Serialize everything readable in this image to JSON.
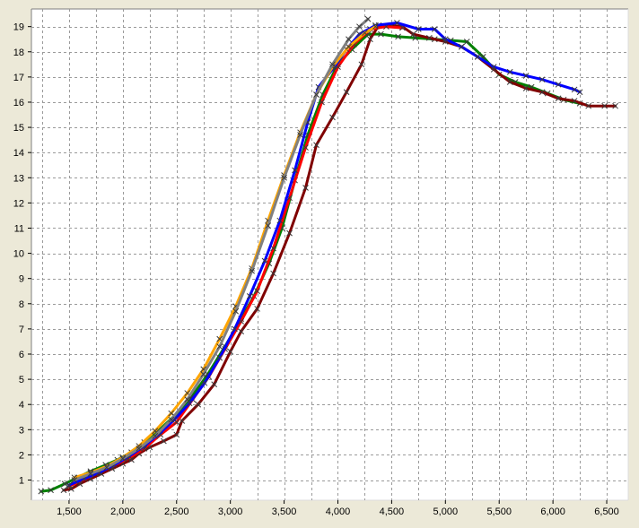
{
  "chart_data": {
    "type": "line",
    "title": "",
    "xlabel": "",
    "ylabel": "",
    "xlim": [
      1150,
      6700
    ],
    "ylim": [
      0.2,
      19.7
    ],
    "xticks": [
      1500,
      2000,
      2500,
      3000,
      3500,
      4000,
      4500,
      5000,
      5500,
      6000,
      6500
    ],
    "xtick_labels": [
      "1,500",
      "2,000",
      "2,500",
      "3,000",
      "3,500",
      "4,000",
      "4,500",
      "5,000",
      "5,500",
      "6,000",
      "6,500"
    ],
    "yticks": [
      1,
      2,
      3,
      4,
      5,
      6,
      7,
      8,
      9,
      10,
      11,
      12,
      13,
      14,
      15,
      16,
      17,
      18,
      19
    ],
    "ytick_labels": [
      "1",
      "2",
      "3",
      "4",
      "5",
      "6",
      "7",
      "8",
      "9",
      "10",
      "11",
      "12",
      "13",
      "14",
      "15",
      "16",
      "17",
      "18",
      "19"
    ],
    "xminor_step": 250,
    "grid": true,
    "legend": "none",
    "marker": "x",
    "series": [
      {
        "color": "#008000",
        "x": [
          1240,
          1330,
          1460,
          1580,
          1700,
          1840,
          1950,
          2080,
          2200,
          2330,
          2480,
          2640,
          2790,
          2950,
          3100,
          3220,
          3360,
          3480,
          3600,
          3720,
          3860,
          4000,
          4130,
          4280,
          4400,
          4560,
          4720,
          4900,
          5050,
          5200,
          5350,
          5500,
          5650,
          5800,
          5950,
          6100,
          6250
        ],
        "y": [
          0.55,
          0.6,
          0.85,
          1.1,
          1.35,
          1.6,
          1.8,
          2.1,
          2.5,
          2.95,
          3.55,
          4.3,
          5.2,
          6.3,
          7.4,
          8.3,
          9.6,
          11.0,
          12.9,
          14.7,
          16.3,
          17.5,
          18.1,
          18.7,
          18.7,
          18.6,
          18.55,
          18.5,
          18.45,
          18.4,
          17.8,
          17.1,
          16.8,
          16.6,
          16.35,
          16.1,
          15.95
        ]
      },
      {
        "color": "#800000",
        "x": [
          1450,
          1520,
          1600,
          1700,
          1800,
          1900,
          2000,
          2080,
          2150,
          2250,
          2380,
          2500,
          2550,
          2700,
          2850,
          3000,
          3100,
          3250,
          3400,
          3550,
          3700,
          3800,
          3950,
          4080,
          4220,
          4300,
          4380,
          4500,
          4600,
          4700,
          4850,
          5000,
          5150,
          5300,
          5450,
          5600,
          5750,
          5900,
          6050,
          6200,
          6330,
          6480,
          6580
        ],
        "y": [
          0.6,
          0.65,
          0.85,
          1.05,
          1.25,
          1.45,
          1.65,
          1.8,
          2.05,
          2.3,
          2.55,
          2.8,
          3.35,
          4.0,
          4.8,
          6.1,
          6.9,
          7.8,
          9.2,
          10.8,
          12.6,
          14.3,
          15.4,
          16.4,
          17.5,
          18.5,
          19.05,
          19.05,
          19.0,
          18.7,
          18.55,
          18.4,
          18.2,
          17.8,
          17.3,
          16.8,
          16.55,
          16.4,
          16.15,
          16.05,
          15.85,
          15.85,
          15.85
        ]
      },
      {
        "color": "#ff0000",
        "x": [
          1500,
          1600,
          1750,
          1900,
          2050,
          2200,
          2350,
          2500,
          2650,
          2800,
          2950,
          3100,
          3250,
          3400,
          3550,
          3700,
          3850,
          4000,
          4150,
          4300,
          4450,
          4600
        ],
        "y": [
          0.75,
          0.95,
          1.25,
          1.55,
          1.85,
          2.25,
          2.8,
          3.3,
          4.2,
          5.1,
          6.2,
          7.3,
          8.5,
          10.2,
          12.2,
          14.2,
          16.0,
          17.4,
          18.3,
          18.9,
          19.0,
          18.95
        ]
      },
      {
        "color": "#0000ff",
        "x": [
          1500,
          1640,
          1780,
          1920,
          2060,
          2200,
          2340,
          2480,
          2620,
          2760,
          2900,
          3040,
          3180,
          3320,
          3460,
          3600,
          3720,
          3820,
          3950,
          4080,
          4200,
          4350,
          4550,
          4750,
          4900,
          5000,
          5150,
          5300,
          5450,
          5600,
          5750,
          5900,
          6050,
          6200,
          6250
        ],
        "y": [
          0.8,
          1.05,
          1.3,
          1.6,
          1.95,
          2.35,
          2.85,
          3.4,
          4.05,
          4.85,
          5.85,
          7.0,
          8.3,
          9.7,
          11.3,
          13.3,
          15.2,
          16.6,
          17.3,
          18.1,
          18.7,
          19.05,
          19.15,
          18.9,
          18.9,
          18.5,
          18.2,
          17.8,
          17.4,
          17.2,
          17.05,
          16.9,
          16.7,
          16.5,
          16.4
        ]
      },
      {
        "color": "#ffa500",
        "x": [
          1550,
          1700,
          1850,
          2000,
          2150,
          2300,
          2450,
          2600,
          2750,
          2900,
          3050,
          3200,
          3350,
          3500,
          3650,
          3800,
          3950,
          4100,
          4250,
          4350
        ],
        "y": [
          1.1,
          1.3,
          1.55,
          1.9,
          2.35,
          2.95,
          3.65,
          4.45,
          5.4,
          6.6,
          7.9,
          9.4,
          11.3,
          13.1,
          14.8,
          16.3,
          17.4,
          18.2,
          18.75,
          19.0
        ]
      },
      {
        "color": "#808080",
        "x": [
          1550,
          1700,
          1850,
          2000,
          2150,
          2300,
          2450,
          2600,
          2750,
          2900,
          3050,
          3200,
          3350,
          3500,
          3650,
          3800,
          3950,
          4100,
          4200,
          4280
        ],
        "y": [
          1.0,
          1.25,
          1.5,
          1.85,
          2.25,
          2.75,
          3.4,
          4.2,
          5.2,
          6.3,
          7.7,
          9.3,
          11.1,
          13.0,
          14.7,
          16.3,
          17.5,
          18.5,
          19.0,
          19.3
        ]
      }
    ]
  }
}
